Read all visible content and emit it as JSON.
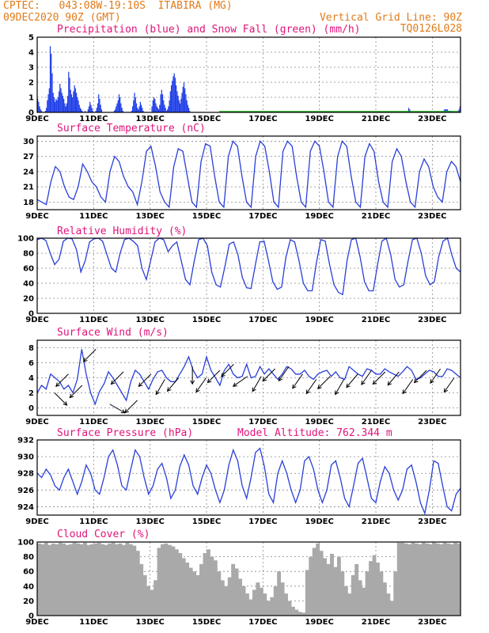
{
  "header": {
    "line1": "CPTEC:   043:08W-19:10S  ITABIRA (MG)",
    "line2": "09DEC2020 90Z (GMT)",
    "right1": "Vertical Grid Line: 90Z",
    "right2": "TQ0126L028"
  },
  "colors": {
    "precip": "#1f3ee8",
    "snow": "#19b319",
    "line": "#2a3fd8",
    "wind": "#000000",
    "cloud": "#a9a9a9",
    "title": "#e0147a",
    "header": "#e07b1a"
  },
  "chart_data": [
    {
      "type": "bar",
      "title": "Precipitation (blue) and Snow Fall (green) (mm/h)",
      "xlabel": "",
      "ylabel": "",
      "x_ticks": [
        "9DEC",
        "11DEC",
        "13DEC",
        "15DEC",
        "17DEC",
        "19DEC",
        "21DEC",
        "23DEC"
      ],
      "ylim": [
        0,
        5
      ],
      "y_ticks": [
        0,
        1,
        2,
        3,
        4,
        5
      ],
      "series": [
        {
          "name": "Precipitation",
          "values": [
            0.9,
            0.7,
            0.4,
            0.2,
            0.1,
            0,
            0,
            0,
            0.1,
            0.3,
            0.8,
            1.2,
            1.6,
            4.4,
            3.9,
            2.6,
            1.3,
            1.0,
            0.7,
            0.9,
            0.8,
            1.0,
            1.4,
            1.9,
            1.6,
            1.3,
            1.1,
            0.9,
            0.6,
            0.4,
            0.6,
            1.1,
            2.7,
            2.3,
            1.5,
            1.2,
            1.0,
            1.4,
            1.8,
            1.6,
            1.3,
            1.0,
            0.8,
            0.5,
            0.3,
            0.2,
            0.1,
            0,
            0,
            0.1,
            0,
            0,
            0.2,
            0.4,
            0.7,
            0.5,
            0.3,
            0.1,
            0,
            0,
            0.1,
            0.3,
            0.6,
            1.2,
            0.9,
            0.5,
            0.2,
            0,
            0,
            0,
            0,
            0,
            0,
            0,
            0,
            0,
            0,
            0,
            0,
            0.1,
            0.2,
            0.4,
            0.6,
            0.8,
            1.2,
            1.0,
            0.6,
            0.3,
            0.1,
            0,
            0,
            0,
            0,
            0,
            0,
            0,
            0,
            0.1,
            0.4,
            0.8,
            1.3,
            1.0,
            0.6,
            0.3,
            0.2,
            0.4,
            0.7,
            0.5,
            0.3,
            0.1,
            0,
            0,
            0,
            0,
            0,
            0,
            0,
            0,
            0.4,
            0.8,
            1.0,
            0.9,
            0.6,
            0.4,
            0.3,
            0.2,
            0.5,
            1.2,
            1.5,
            1.2,
            0.8,
            0.5,
            0.3,
            0.1,
            0.2,
            0.4,
            0.8,
            1.4,
            1.8,
            2.1,
            2.4,
            2.6,
            2.3,
            1.8,
            1.4,
            1.1,
            0.8,
            0.6,
            0.9,
            1.3,
            1.7,
            2.0,
            1.6,
            1.2,
            0.8,
            0.5,
            0.3,
            0.1,
            0,
            0,
            0,
            0,
            0,
            0,
            0,
            0,
            0,
            0,
            0,
            0,
            0,
            0,
            0,
            0,
            0,
            0,
            0,
            0,
            0,
            0,
            0,
            0,
            0,
            0,
            0,
            0,
            0,
            0,
            0,
            0,
            0,
            0,
            0,
            0,
            0,
            0,
            0,
            0,
            0,
            0,
            0,
            0,
            0,
            0,
            0,
            0,
            0,
            0,
            0,
            0,
            0,
            0,
            0,
            0,
            0,
            0,
            0,
            0,
            0,
            0,
            0,
            0,
            0,
            0,
            0,
            0,
            0,
            0,
            0,
            0,
            0,
            0,
            0,
            0,
            0,
            0,
            0,
            0,
            0,
            0,
            0,
            0,
            0,
            0,
            0,
            0,
            0,
            0,
            0,
            0,
            0,
            0,
            0,
            0,
            0,
            0,
            0,
            0,
            0,
            0,
            0,
            0,
            0,
            0,
            0,
            0,
            0,
            0,
            0,
            0,
            0,
            0,
            0,
            0,
            0,
            0,
            0,
            0,
            0,
            0,
            0,
            0,
            0,
            0,
            0,
            0,
            0,
            0,
            0,
            0,
            0,
            0,
            0,
            0,
            0,
            0,
            0,
            0,
            0,
            0,
            0,
            0,
            0,
            0,
            0,
            0,
            0,
            0,
            0,
            0,
            0,
            0,
            0,
            0,
            0,
            0,
            0,
            0,
            0,
            0,
            0,
            0,
            0,
            0,
            0,
            0,
            0,
            0,
            0,
            0,
            0,
            0,
            0,
            0,
            0,
            0,
            0,
            0,
            0,
            0,
            0,
            0,
            0,
            0,
            0,
            0,
            0,
            0,
            0,
            0,
            0,
            0,
            0,
            0,
            0,
            0,
            0,
            0,
            0,
            0,
            0,
            0,
            0,
            0,
            0,
            0,
            0,
            0,
            0,
            0,
            0,
            0,
            0,
            0,
            0,
            0,
            0,
            0,
            0,
            0,
            0,
            0,
            0,
            0.3,
            0.2,
            0.1,
            0,
            0,
            0,
            0,
            0,
            0,
            0,
            0,
            0,
            0,
            0,
            0,
            0,
            0,
            0,
            0,
            0,
            0,
            0,
            0,
            0,
            0,
            0,
            0,
            0,
            0,
            0,
            0,
            0,
            0,
            0,
            0,
            0,
            0.1,
            0.2,
            0.2,
            0.2,
            0.2,
            0.1,
            0.1,
            0.1,
            0.1,
            0,
            0,
            0,
            0,
            0,
            0,
            0.1,
            0.2,
            0.4
          ]
        }
      ]
    },
    {
      "type": "line",
      "title": "Surface Temperature (nC)",
      "x_ticks": [
        "9DEC",
        "11DEC",
        "13DEC",
        "15DEC",
        "17DEC",
        "19DEC",
        "21DEC",
        "23DEC"
      ],
      "ylim": [
        16.5,
        31
      ],
      "y_ticks": [
        18,
        21,
        24,
        27,
        30
      ],
      "series": [
        {
          "values": [
            18.5,
            18,
            17.5,
            22,
            25,
            24,
            21,
            19,
            18.5,
            21,
            25.5,
            24,
            22,
            21,
            19,
            18,
            24,
            27,
            26,
            23,
            21,
            20,
            17.5,
            22,
            28,
            29,
            25,
            20,
            18,
            17,
            25,
            28.5,
            28,
            23,
            18,
            17,
            26,
            29.5,
            29,
            23,
            18,
            17,
            27,
            30,
            29,
            23,
            18,
            17,
            27,
            30,
            29,
            24,
            18,
            17,
            28,
            30,
            29,
            23,
            18,
            17,
            28,
            30,
            29,
            24,
            18,
            17,
            27,
            30,
            29,
            23,
            18,
            17,
            27,
            29.5,
            28,
            22,
            18,
            17,
            26,
            28.5,
            27,
            22,
            18,
            17,
            24,
            26.5,
            25,
            21,
            19,
            18,
            24,
            26,
            25,
            22
          ]
        }
      ]
    },
    {
      "type": "line",
      "title": "Relative Humidity (%)",
      "x_ticks": [
        "9DEC",
        "11DEC",
        "13DEC",
        "15DEC",
        "17DEC",
        "19DEC",
        "21DEC",
        "23DEC"
      ],
      "ylim": [
        0,
        100
      ],
      "y_ticks": [
        0,
        20,
        40,
        60,
        80,
        100
      ],
      "series": [
        {
          "values": [
            98,
            100,
            97,
            80,
            65,
            72,
            96,
            100,
            99,
            85,
            55,
            70,
            95,
            99,
            100,
            96,
            78,
            60,
            55,
            80,
            98,
            100,
            96,
            90,
            60,
            45,
            70,
            95,
            100,
            98,
            82,
            90,
            95,
            70,
            45,
            38,
            70,
            98,
            100,
            90,
            55,
            38,
            35,
            62,
            92,
            95,
            78,
            48,
            34,
            33,
            65,
            95,
            96,
            70,
            42,
            32,
            35,
            75,
            98,
            95,
            70,
            40,
            30,
            30,
            68,
            98,
            96,
            65,
            38,
            28,
            25,
            70,
            98,
            100,
            75,
            42,
            30,
            30,
            65,
            96,
            100,
            78,
            45,
            35,
            38,
            70,
            98,
            100,
            80,
            50,
            38,
            42,
            75,
            96,
            100,
            78,
            60,
            55
          ]
        }
      ]
    },
    {
      "type": "line",
      "title": "Surface Wind (m/s)",
      "x_ticks": [
        "9DEC",
        "11DEC",
        "13DEC",
        "15DEC",
        "17DEC",
        "19DEC",
        "21DEC",
        "23DEC"
      ],
      "ylim": [
        -1,
        9
      ],
      "y_ticks": [
        0,
        2,
        4,
        6,
        8
      ],
      "series": [
        {
          "values": [
            2,
            3,
            2.5,
            4.5,
            4,
            3.5,
            2.5,
            3,
            2,
            3.8,
            7.8,
            4.5,
            2,
            0.5,
            2.2,
            3.2,
            4.8,
            4,
            3,
            2,
            1,
            3.5,
            5,
            4.5,
            3.5,
            2.5,
            3.8,
            4.8,
            5,
            4,
            3.5,
            3.5,
            4.5,
            5.5,
            6.8,
            5,
            4,
            4.5,
            6.8,
            5,
            4,
            3,
            5,
            5.8,
            4.5,
            4,
            4.2,
            5.8,
            4,
            4.2,
            5.5,
            4.5,
            5.2,
            4.5,
            3.8,
            4.5,
            5.5,
            5.2,
            4.5,
            4.5,
            5,
            4.2,
            3.8,
            4.5,
            4.8,
            5,
            4.2,
            4.8,
            4,
            3.8,
            5.5,
            5,
            4.5,
            4.2,
            5.2,
            5,
            4.5,
            4.5,
            5.2,
            4.8,
            4.5,
            4.2,
            4.8,
            5.5,
            5,
            3.8,
            4,
            4.5,
            5,
            4.8,
            4.2,
            4.2,
            5.2,
            5,
            4.5,
            4
          ]
        }
      ],
      "arrows_deg": [
        135,
        225,
        225,
        225,
        120,
        225,
        225,
        225,
        210,
        220,
        180,
        215,
        225,
        225,
        235,
        210,
        225,
        215,
        215,
        215,
        225,
        210,
        220,
        215,
        225,
        220,
        215,
        225,
        215,
        215
      ]
    },
    {
      "type": "line",
      "title": "Surface Pressure (hPa)",
      "annotation": "Model Altitude: 762.344 m",
      "x_ticks": [
        "9DEC",
        "11DEC",
        "13DEC",
        "15DEC",
        "17DEC",
        "19DEC",
        "21DEC",
        "23DEC"
      ],
      "ylim": [
        923,
        932
      ],
      "y_ticks": [
        924,
        926,
        928,
        930,
        932
      ],
      "series": [
        {
          "values": [
            928,
            927.5,
            928.5,
            927.8,
            926.5,
            926,
            927.5,
            928.5,
            927,
            925.5,
            927,
            929,
            928,
            926,
            925.5,
            927.5,
            930,
            930.8,
            929,
            926.5,
            926,
            928.5,
            930.8,
            930,
            927.5,
            925.5,
            926.5,
            928.5,
            929.2,
            927.5,
            925,
            926,
            928.8,
            930.2,
            929,
            926.5,
            925.5,
            927.5,
            929,
            928,
            926,
            924.5,
            926,
            929,
            930.8,
            929.5,
            926.5,
            925,
            927.5,
            930.5,
            931,
            928.8,
            925.5,
            924.5,
            928,
            929.5,
            928,
            926,
            924.5,
            926,
            929.5,
            930,
            928.5,
            926,
            924.5,
            926,
            929,
            929.5,
            927.5,
            925,
            924,
            926.5,
            929.2,
            929.8,
            927.5,
            925,
            924.5,
            927,
            928.8,
            928,
            926,
            924.8,
            926,
            928.5,
            929,
            927,
            924.5,
            923.2,
            926,
            929.5,
            929.2,
            926.5,
            924,
            923.5,
            925.5,
            926.2
          ]
        }
      ]
    },
    {
      "type": "bar",
      "title": "Cloud Cover (%)",
      "x_ticks": [
        "9DEC",
        "11DEC",
        "13DEC",
        "15DEC",
        "17DEC",
        "19DEC",
        "21DEC",
        "23DEC"
      ],
      "ylim": [
        0,
        100
      ],
      "y_ticks": [
        0,
        20,
        40,
        60,
        80,
        100
      ],
      "series": [
        {
          "values": [
            98,
            97,
            99,
            96,
            98,
            97,
            99,
            98,
            96,
            97,
            99,
            98,
            97,
            99,
            96,
            97,
            98,
            99,
            97,
            96,
            98,
            99,
            97,
            98,
            96,
            99,
            97,
            95,
            88,
            70,
            55,
            40,
            35,
            48,
            92,
            97,
            98,
            96,
            94,
            90,
            85,
            78,
            72,
            65,
            60,
            55,
            70,
            85,
            90,
            80,
            75,
            60,
            48,
            40,
            52,
            70,
            64,
            50,
            40,
            30,
            22,
            35,
            45,
            38,
            30,
            20,
            25,
            40,
            60,
            45,
            30,
            20,
            12,
            8,
            5,
            4,
            62,
            80,
            92,
            98,
            88,
            78,
            70,
            84,
            66,
            80,
            60,
            40,
            30,
            55,
            70,
            48,
            38,
            60,
            74,
            82,
            72,
            60,
            45,
            30,
            20,
            60,
            99,
            99,
            98,
            97,
            99,
            98,
            97,
            99,
            98,
            97,
            99,
            98,
            97,
            99,
            98,
            97,
            99,
            98
          ]
        }
      ]
    }
  ]
}
